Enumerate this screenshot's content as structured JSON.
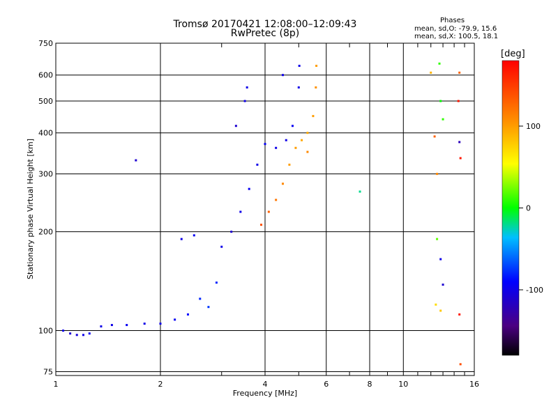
{
  "header": {
    "title_line1": "Tromsø 20170421 12:08:00–12:09:43",
    "title_line2": "RwPretec (8p)",
    "phases_title": "Phases",
    "phases_o": "mean, sd,O: -79.9, 15.6",
    "phases_x": "mean, sd,X: 100.5, 18.1"
  },
  "colorbar": {
    "unit": "[deg]",
    "range": [
      -180,
      180
    ],
    "ticks": [
      100,
      0,
      -100
    ],
    "tick_labels": [
      "100",
      "0",
      "-100"
    ]
  },
  "chart_data": {
    "type": "scatter",
    "xlabel": "Frequency [MHz]",
    "ylabel": "Stationary phase Virtual Height [km]",
    "xscale": "log",
    "yscale": "log",
    "xlim": [
      1,
      16
    ],
    "ylim": [
      73,
      750
    ],
    "x_ticks": [
      1,
      2,
      4,
      6,
      8,
      10,
      16
    ],
    "x_tick_labels": [
      "1",
      "2",
      "4",
      "6",
      "8",
      "10",
      "16"
    ],
    "y_ticks": [
      75,
      100,
      200,
      300,
      400,
      500,
      600,
      750
    ],
    "y_tick_labels": [
      "75",
      "100",
      "200",
      "300",
      "400",
      "500",
      "600",
      "750"
    ],
    "grid": true,
    "series": [
      {
        "mode": "O",
        "points": [
          [
            1.05,
            100,
            -100
          ],
          [
            1.1,
            98,
            -110
          ],
          [
            1.15,
            97,
            -105
          ],
          [
            1.2,
            97,
            -100
          ],
          [
            1.25,
            98,
            -95
          ],
          [
            1.35,
            103,
            -100
          ],
          [
            1.45,
            104,
            -100
          ],
          [
            1.6,
            104,
            -95
          ],
          [
            1.8,
            105,
            -100
          ],
          [
            2.0,
            105,
            -100
          ],
          [
            2.2,
            108,
            -95
          ],
          [
            2.4,
            112,
            -90
          ],
          [
            2.6,
            125,
            -80
          ],
          [
            2.75,
            118,
            -75
          ],
          [
            2.9,
            140,
            -80
          ],
          [
            3.0,
            180,
            -100
          ],
          [
            3.2,
            200,
            -110
          ],
          [
            3.4,
            230,
            -100
          ],
          [
            3.6,
            270,
            -95
          ],
          [
            3.8,
            320,
            -100
          ],
          [
            4.0,
            370,
            -95
          ],
          [
            4.3,
            360,
            -100
          ],
          [
            4.6,
            380,
            -100
          ],
          [
            4.8,
            420,
            -95
          ],
          [
            5.0,
            550,
            -100
          ],
          [
            5.02,
            640,
            -100
          ],
          [
            2.3,
            190,
            -100
          ],
          [
            2.5,
            195,
            -95
          ],
          [
            1.7,
            330,
            -110
          ],
          [
            3.3,
            420,
            -110
          ],
          [
            3.5,
            500,
            -100
          ],
          [
            3.55,
            550,
            -100
          ],
          [
            4.5,
            600,
            -100
          ]
        ]
      },
      {
        "mode": "X",
        "points": [
          [
            3.9,
            210,
            140
          ],
          [
            4.1,
            230,
            130
          ],
          [
            4.3,
            250,
            120
          ],
          [
            4.5,
            280,
            110
          ],
          [
            4.7,
            320,
            100
          ],
          [
            4.9,
            360,
            100
          ],
          [
            5.1,
            380,
            95
          ],
          [
            5.3,
            400,
            95
          ],
          [
            5.5,
            450,
            100
          ],
          [
            5.6,
            550,
            105
          ],
          [
            5.62,
            640,
            100
          ],
          [
            5.3,
            350,
            110
          ]
        ]
      },
      {
        "mode": "scattered",
        "points": [
          [
            7.5,
            265,
            -20
          ],
          [
            12.0,
            610,
            90
          ],
          [
            12.3,
            390,
            130
          ],
          [
            12.5,
            300,
            110
          ],
          [
            12.7,
            650,
            10
          ],
          [
            12.8,
            500,
            0
          ],
          [
            13.0,
            440,
            10
          ],
          [
            12.5,
            190,
            20
          ],
          [
            12.4,
            120,
            70
          ],
          [
            12.8,
            115,
            80
          ],
          [
            13.0,
            138,
            -110
          ],
          [
            14.5,
            610,
            130
          ],
          [
            14.4,
            500,
            170
          ],
          [
            14.5,
            375,
            -120
          ],
          [
            14.6,
            335,
            170
          ],
          [
            14.5,
            112,
            170
          ],
          [
            14.6,
            79,
            140
          ],
          [
            12.8,
            165,
            -100
          ]
        ]
      }
    ]
  }
}
